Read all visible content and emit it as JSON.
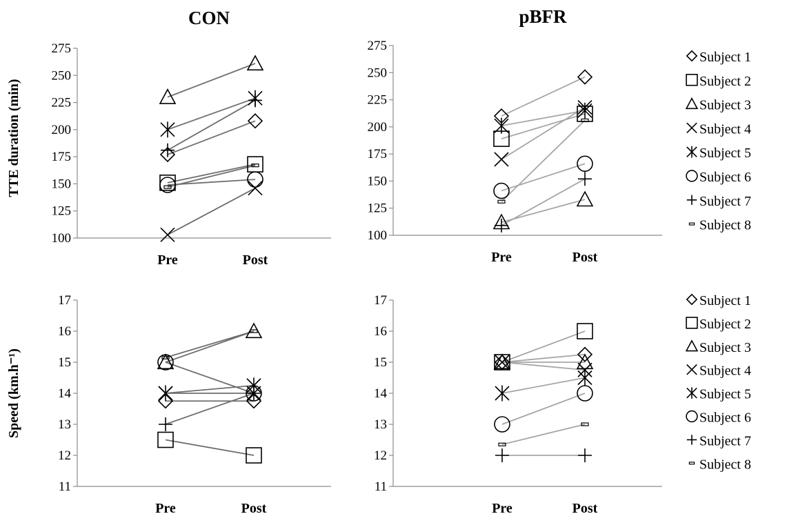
{
  "chart_data": [
    {
      "type": "line",
      "title": "CON",
      "ylabel": "TTE duration (min)",
      "categories": [
        "Pre",
        "Post"
      ],
      "ylim": [
        100,
        275
      ],
      "yticks": [
        "100",
        "125",
        "150",
        "175",
        "200",
        "225",
        "250",
        "275"
      ],
      "series": [
        {
          "name": "Subject 1",
          "values": [
            177,
            208
          ]
        },
        {
          "name": "Subject 2",
          "values": [
            151,
            168
          ]
        },
        {
          "name": "Subject 3",
          "values": [
            230,
            261
          ]
        },
        {
          "name": "Subject 4",
          "values": [
            103,
            146
          ]
        },
        {
          "name": "Subject 5",
          "values": [
            200,
            229
          ]
        },
        {
          "name": "Subject 6",
          "values": [
            149,
            154
          ]
        },
        {
          "name": "Subject 7",
          "values": [
            181,
            227
          ]
        },
        {
          "name": "Subject 8",
          "values": [
            147,
            167
          ]
        }
      ]
    },
    {
      "type": "line",
      "title": "pBFR",
      "ylabel": "",
      "categories": [
        "Pre",
        "Post"
      ],
      "ylim": [
        100,
        275
      ],
      "yticks": [
        "100",
        "125",
        "150",
        "175",
        "200",
        "225",
        "250",
        "275"
      ],
      "series": [
        {
          "name": "Subject 1",
          "values": [
            210,
            246
          ]
        },
        {
          "name": "Subject 2",
          "values": [
            189,
            212
          ]
        },
        {
          "name": "Subject 3",
          "values": [
            112,
            133
          ]
        },
        {
          "name": "Subject 4",
          "values": [
            170,
            218
          ]
        },
        {
          "name": "Subject 5",
          "values": [
            201,
            215
          ]
        },
        {
          "name": "Subject 6",
          "values": [
            141,
            166
          ]
        },
        {
          "name": "Subject 7",
          "values": [
            109,
            152
          ]
        },
        {
          "name": "Subject 8",
          "values": [
            131,
            206
          ]
        }
      ]
    },
    {
      "type": "line",
      "title": "",
      "ylabel": "Speed (km.h⁻¹)",
      "categories": [
        "Pre",
        "Post"
      ],
      "ylim": [
        11,
        17
      ],
      "yticks": [
        "11",
        "12",
        "13",
        "14",
        "15",
        "16",
        "17"
      ],
      "series": [
        {
          "name": "Subject 1",
          "values": [
            13.75,
            13.75
          ]
        },
        {
          "name": "Subject 2",
          "values": [
            12.5,
            12.0
          ]
        },
        {
          "name": "Subject 3",
          "values": [
            15.0,
            16.0
          ]
        },
        {
          "name": "Subject 4",
          "values": [
            14.0,
            14.0
          ]
        },
        {
          "name": "Subject 5",
          "values": [
            14.0,
            14.25
          ]
        },
        {
          "name": "Subject 6",
          "values": [
            15.0,
            14.0
          ]
        },
        {
          "name": "Subject 7",
          "values": [
            13.0,
            14.0
          ]
        },
        {
          "name": "Subject 8",
          "values": [
            15.15,
            16.0
          ]
        }
      ]
    },
    {
      "type": "line",
      "title": "",
      "ylabel": "",
      "categories": [
        "Pre",
        "Post"
      ],
      "ylim": [
        11,
        17
      ],
      "yticks": [
        "11",
        "12",
        "13",
        "14",
        "15",
        "16",
        "17"
      ],
      "series": [
        {
          "name": "Subject 1",
          "values": [
            15.0,
            15.25
          ]
        },
        {
          "name": "Subject 2",
          "values": [
            15.0,
            16.0
          ]
        },
        {
          "name": "Subject 3",
          "values": [
            15.0,
            15.0
          ]
        },
        {
          "name": "Subject 4",
          "values": [
            15.0,
            14.75
          ]
        },
        {
          "name": "Subject 5",
          "values": [
            14.0,
            14.5
          ]
        },
        {
          "name": "Subject 6",
          "values": [
            13.0,
            14.0
          ]
        },
        {
          "name": "Subject 7",
          "values": [
            12.0,
            12.0
          ]
        },
        {
          "name": "Subject 8",
          "values": [
            12.35,
            13.0
          ]
        }
      ]
    }
  ],
  "legends": [
    {
      "entries": [
        {
          "label": "Subject 1",
          "icon": "diamond"
        },
        {
          "label": "Subject 2",
          "icon": "square"
        },
        {
          "label": "Subject 3",
          "icon": "triangle"
        },
        {
          "label": "Subject 4",
          "icon": "x-cross"
        },
        {
          "label": "Subject 5",
          "icon": "asterisk"
        },
        {
          "label": "Subject 6",
          "icon": "circle"
        },
        {
          "label": "Subject 7",
          "icon": "plus"
        },
        {
          "label": "Subject 8",
          "icon": "dash"
        }
      ]
    },
    {
      "entries": [
        {
          "label": "Subject 1",
          "icon": "diamond"
        },
        {
          "label": "Subject 2",
          "icon": "square"
        },
        {
          "label": "Subject 3",
          "icon": "triangle"
        },
        {
          "label": "Subject 4",
          "icon": "x-cross"
        },
        {
          "label": "Subject 5",
          "icon": "asterisk"
        },
        {
          "label": "Subject 6",
          "icon": "circle"
        },
        {
          "label": "Subject 7",
          "icon": "plus"
        },
        {
          "label": "Subject 8",
          "icon": "dash"
        }
      ]
    }
  ],
  "colors": {
    "line_con": "#6e6e6e",
    "line_pbfr": "#a6a6a6",
    "axis": "#8c8c8c",
    "marker": "#000000"
  }
}
